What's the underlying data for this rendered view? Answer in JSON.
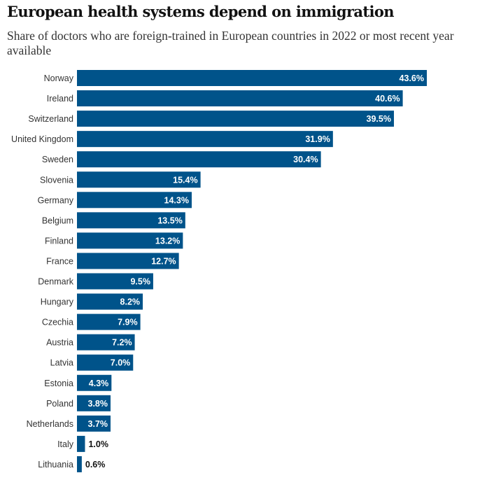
{
  "header": {
    "title": "European health systems depend on immigration",
    "subtitle": "Share of doctors who are foreign-trained in European countries in 2022 or most recent year available"
  },
  "chart_data": {
    "type": "bar",
    "orientation": "horizontal",
    "title": "European health systems depend on immigration",
    "subtitle": "Share of doctors who are foreign-trained in European countries in 2022 or most recent year available",
    "xlabel": "",
    "ylabel": "",
    "unit": "%",
    "bar_color": "#00538a",
    "label_color_inside": "#ffffff",
    "label_color_outside": "#121212",
    "grid": false,
    "categories": [
      "Norway",
      "Ireland",
      "Switzerland",
      "United Kingdom",
      "Sweden",
      "Slovenia",
      "Germany",
      "Belgium",
      "Finland",
      "France",
      "Denmark",
      "Hungary",
      "Czechia",
      "Austria",
      "Latvia",
      "Estonia",
      "Poland",
      "Netherlands",
      "Italy",
      "Lithuania"
    ],
    "values": [
      43.6,
      40.6,
      39.5,
      31.9,
      30.4,
      15.4,
      14.3,
      13.5,
      13.2,
      12.7,
      9.5,
      8.2,
      7.9,
      7.2,
      7.0,
      4.3,
      3.8,
      3.7,
      1.0,
      0.6
    ],
    "value_labels": [
      "43.6%",
      "40.6%",
      "39.5%",
      "31.9%",
      "30.4%",
      "15.4%",
      "14.3%",
      "13.5%",
      "13.2%",
      "12.7%",
      "9.5%",
      "8.2%",
      "7.9%",
      "7.2%",
      "7.0%",
      "4.3%",
      "3.8%",
      "3.7%",
      "1.0%",
      "0.6%"
    ]
  }
}
